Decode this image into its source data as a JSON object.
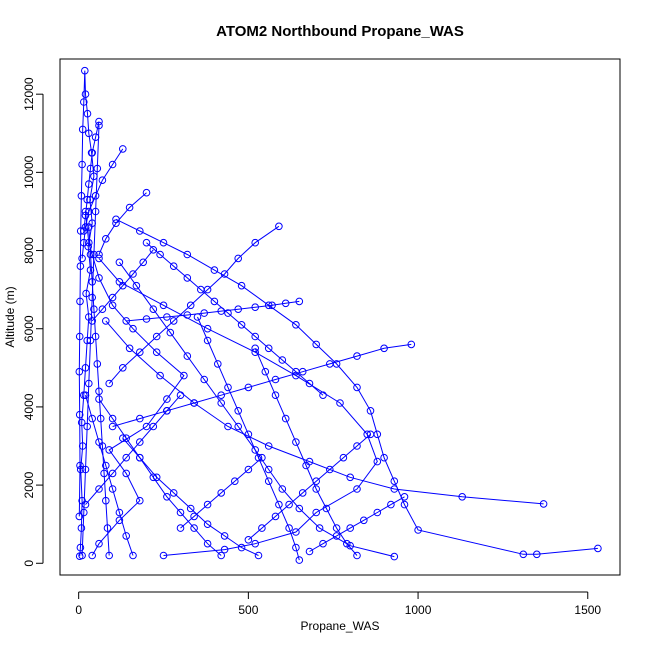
{
  "chart_data": {
    "type": "scatter",
    "title": "ATOM2 Northbound Propane_WAS",
    "xlabel": "Propane_WAS",
    "ylabel": "Altitude (m)",
    "xlim": [
      -55,
      1595
    ],
    "ylim": [
      -300,
      12900
    ],
    "xticks": [
      0,
      500,
      1000,
      1500
    ],
    "yticks": [
      0,
      2000,
      4000,
      6000,
      8000,
      10000,
      12000
    ],
    "grid": false,
    "legend": "none",
    "point_style": "open-circle",
    "connected": true,
    "color": "#0000ff",
    "series": [
      {
        "x": [
          3,
          5,
          8,
          10,
          6,
          12,
          9,
          15,
          20,
          25,
          30,
          22,
          35,
          28,
          40,
          33,
          45,
          38,
          30,
          26,
          20,
          18,
          15,
          12,
          10,
          8,
          6,
          5,
          4,
          3,
          2,
          3,
          4,
          2
        ],
        "y": [
          180,
          400,
          900,
          1600,
          2400,
          3000,
          3600,
          4300,
          5000,
          5700,
          6300,
          6900,
          7500,
          8100,
          8700,
          9300,
          9900,
          10500,
          11000,
          11500,
          12000,
          12600,
          11800,
          11100,
          10200,
          9400,
          8500,
          7600,
          6700,
          5800,
          4900,
          3800,
          2500,
          1200
        ]
      },
      {
        "x": [
          40,
          60,
          120,
          180,
          140,
          90,
          200,
          260,
          310,
          230,
          160,
          100,
          60,
          30,
          20
        ],
        "y": [
          200,
          500,
          1100,
          1600,
          2300,
          2900,
          3500,
          4200,
          4800,
          5400,
          6000,
          6600,
          7300,
          8200,
          9000
        ]
      },
      {
        "x": [
          250,
          430,
          520,
          640,
          700,
          820,
          880,
          850,
          770,
          640,
          520,
          380,
          250,
          120,
          60
        ],
        "y": [
          200,
          350,
          500,
          800,
          1300,
          1900,
          2600,
          3300,
          4100,
          4800,
          5400,
          6000,
          6600,
          7200,
          7800
        ]
      },
      {
        "x": [
          1530,
          1350,
          1310,
          1000,
          960,
          930,
          900,
          880,
          860,
          820,
          760,
          700,
          640,
          560,
          480,
          400,
          320,
          250,
          180,
          110
        ],
        "y": [
          380,
          230,
          230,
          850,
          1500,
          2100,
          2700,
          3300,
          3900,
          4500,
          5100,
          5600,
          6100,
          6600,
          7100,
          7500,
          7900,
          8200,
          8500,
          8800
        ]
      },
      {
        "x": [
          1370,
          1130,
          930,
          800,
          680,
          560,
          440,
          340,
          240,
          150,
          80
        ],
        "y": [
          1520,
          1700,
          1900,
          2200,
          2600,
          3000,
          3500,
          4100,
          4800,
          5500,
          6200
        ]
      },
      {
        "x": [
          930,
          800,
          710,
          650,
          600,
          560,
          520,
          470,
          420,
          370,
          320,
          270,
          220,
          170,
          120
        ],
        "y": [
          170,
          450,
          900,
          1400,
          1900,
          2400,
          2900,
          3500,
          4100,
          4700,
          5300,
          5900,
          6500,
          7100,
          7700
        ]
      },
      {
        "x": [
          980,
          900,
          820,
          740,
          660,
          580,
          500,
          420,
          340,
          260,
          180,
          100
        ],
        "y": [
          5600,
          5500,
          5300,
          5100,
          4900,
          4700,
          4500,
          4300,
          4100,
          3900,
          3700,
          3500
        ]
      },
      {
        "x": [
          590,
          520,
          470,
          430,
          380,
          330,
          280,
          230,
          180,
          130,
          90
        ],
        "y": [
          8620,
          8200,
          7800,
          7400,
          7000,
          6600,
          6200,
          5800,
          5400,
          5000,
          4600
        ]
      },
      {
        "x": [
          650,
          610,
          570,
          520,
          470,
          420,
          370,
          320,
          260,
          200,
          140
        ],
        "y": [
          6700,
          6650,
          6600,
          6550,
          6500,
          6450,
          6400,
          6350,
          6300,
          6250,
          6200
        ]
      },
      {
        "x": [
          200,
          150,
          110,
          80,
          60
        ],
        "y": [
          9480,
          9100,
          8700,
          8300,
          7900
        ]
      },
      {
        "x": [
          160,
          140,
          120,
          100,
          80,
          60,
          40,
          20
        ],
        "y": [
          200,
          700,
          1300,
          1900,
          2500,
          3100,
          3700,
          4300
        ]
      },
      {
        "x": [
          530,
          480,
          430,
          380,
          330,
          280,
          230,
          180,
          130
        ],
        "y": [
          200,
          400,
          700,
          1000,
          1400,
          1800,
          2200,
          2700,
          3200
        ]
      },
      {
        "x": [
          820,
          790,
          760,
          730,
          700,
          670,
          640,
          610,
          580,
          550,
          520
        ],
        "y": [
          200,
          500,
          900,
          1400,
          1900,
          2500,
          3100,
          3700,
          4300,
          4900,
          5500
        ]
      },
      {
        "x": [
          420,
          380,
          340,
          300,
          260,
          220,
          180,
          140,
          100,
          60
        ],
        "y": [
          200,
          500,
          900,
          1300,
          1700,
          2200,
          2700,
          3200,
          3700,
          4200
        ]
      },
      {
        "x": [
          650,
          640,
          620,
          590,
          560,
          530,
          500,
          470,
          440,
          410,
          380,
          350
        ],
        "y": [
          80,
          400,
          900,
          1500,
          2100,
          2700,
          3300,
          3900,
          4500,
          5100,
          5700,
          6300
        ]
      },
      {
        "x": [
          720,
          680,
          640,
          600,
          560,
          520,
          480,
          440,
          400,
          360,
          320,
          280,
          240,
          200
        ],
        "y": [
          4300,
          4600,
          4900,
          5200,
          5500,
          5800,
          6100,
          6400,
          6700,
          7000,
          7300,
          7600,
          7900,
          8200
        ]
      },
      {
        "x": [
          860,
          820,
          780,
          740,
          700,
          660,
          620,
          580,
          540,
          500
        ],
        "y": [
          3300,
          3000,
          2700,
          2400,
          2100,
          1800,
          1500,
          1200,
          900,
          600
        ]
      },
      {
        "x": [
          130,
          100,
          70,
          50,
          30,
          20,
          15,
          10
        ],
        "y": [
          10600,
          10200,
          9800,
          9400,
          9000,
          8600,
          8200,
          7800
        ]
      },
      {
        "x": [
          60,
          50,
          40,
          35,
          30,
          25,
          20,
          15
        ],
        "y": [
          11300,
          10900,
          10500,
          10100,
          9700,
          9300,
          8900,
          8500
        ]
      },
      {
        "x": [
          220,
          190,
          160,
          130,
          100,
          70,
          40
        ],
        "y": [
          8020,
          7700,
          7400,
          7100,
          6800,
          6500,
          6200
        ]
      },
      {
        "x": [
          300,
          260,
          220,
          180,
          140,
          100,
          60,
          20
        ],
        "y": [
          4300,
          3900,
          3500,
          3100,
          2700,
          2300,
          1900,
          1500
        ]
      },
      {
        "x": [
          540,
          500,
          460,
          420,
          380,
          340,
          300
        ],
        "y": [
          2700,
          2400,
          2100,
          1800,
          1500,
          1200,
          900
        ]
      },
      {
        "x": [
          960,
          920,
          880,
          840,
          800,
          760,
          720,
          680
        ],
        "y": [
          1700,
          1500,
          1300,
          1100,
          900,
          700,
          500,
          300
        ]
      },
      {
        "x": [
          90,
          85,
          80,
          75,
          70,
          65,
          60,
          55,
          50,
          45,
          40,
          35,
          30
        ],
        "y": [
          200,
          900,
          1600,
          2300,
          3000,
          3700,
          4400,
          5100,
          5800,
          6500,
          7200,
          7900,
          8600
        ]
      },
      {
        "x": [
          10,
          15,
          20,
          25,
          30,
          35,
          40,
          45,
          50,
          55,
          60
        ],
        "y": [
          200,
          1300,
          2400,
          3500,
          4600,
          5700,
          6800,
          7900,
          9000,
          10100,
          11200
        ]
      }
    ]
  }
}
